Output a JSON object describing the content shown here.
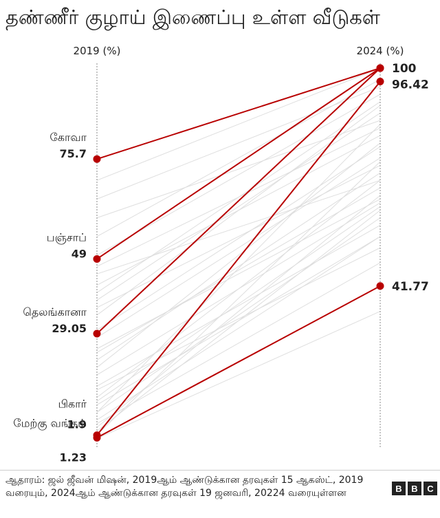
{
  "title": "தண்ணீர் குழாய் இணைப்பு உள்ள வீடுகள்",
  "source": "ஆதாரம்: ஜல் ஜீவன் மிஷன், 2019ஆம் ஆண்டுக்கான தரவுகள் 15 ஆகஸ்ட், 2019 வரையும், 2024ஆம் ஆண்டுக்கான தரவுகள் 19 ஜனவரி, 20224 வரையுள்ளன",
  "logo": [
    "B",
    "B",
    "C"
  ],
  "colors": {
    "highlight": "#b80000",
    "background_line": "#dedede",
    "axis": "#888888",
    "text": "#222222"
  },
  "chart_data": {
    "type": "slope",
    "title": "தண்ணீர் குழாய் இணைப்பு உள்ள வீடுகள்",
    "x_labels": [
      "2019 (%)",
      "2024 (%)"
    ],
    "y_range": [
      0,
      100
    ],
    "highlight_series": [
      {
        "name": "கோவா",
        "start": 75.7,
        "end": 100,
        "start_label": "75.7",
        "end_label": "100"
      },
      {
        "name": "பஞ்சாப்",
        "start": 49,
        "end": 100,
        "start_label": "49"
      },
      {
        "name": "தெலங்கானா",
        "start": 29.05,
        "end": 100,
        "start_label": "29.05"
      },
      {
        "name": "பிகார்",
        "start": 1.9,
        "end": 96.42,
        "start_label": "1.9",
        "end_label": "96.42"
      },
      {
        "name": "மேற்கு வங்கம்",
        "start": 1.23,
        "end": 41.77,
        "start_label": "1.23",
        "end_label": "41.77"
      }
    ],
    "background_series": [
      [
        10,
        55
      ],
      [
        3,
        62
      ],
      [
        45,
        70
      ],
      [
        8,
        85
      ],
      [
        20,
        80
      ],
      [
        5,
        48
      ],
      [
        34,
        90
      ],
      [
        15,
        58
      ],
      [
        2,
        75
      ],
      [
        65,
        95
      ],
      [
        25,
        65
      ],
      [
        38,
        88
      ],
      [
        12,
        70
      ],
      [
        6,
        55
      ],
      [
        28,
        76
      ],
      [
        50,
        93
      ],
      [
        18,
        64
      ],
      [
        42,
        82
      ],
      [
        4,
        66
      ],
      [
        60,
        86
      ],
      [
        22,
        72
      ],
      [
        55,
        97
      ],
      [
        8,
        60
      ],
      [
        30,
        79
      ],
      [
        14,
        52
      ],
      [
        47,
        84
      ],
      [
        1,
        35
      ],
      [
        36,
        74
      ],
      [
        24,
        68
      ],
      [
        70,
        100
      ],
      [
        11,
        63
      ],
      [
        40,
        91
      ]
    ]
  }
}
